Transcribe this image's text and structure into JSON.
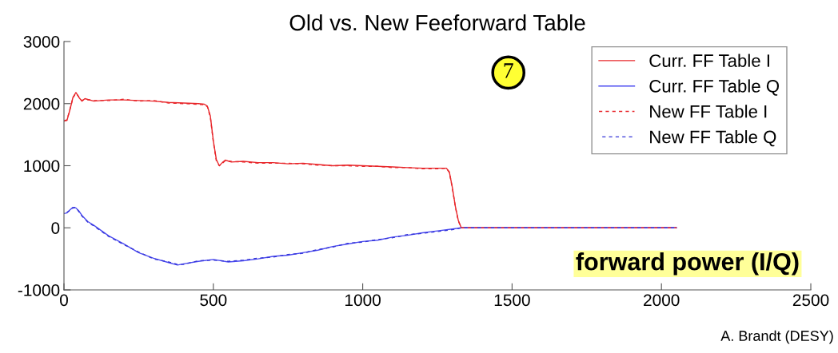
{
  "chart_data": {
    "type": "line",
    "title": "Old vs. New Feeforward Table",
    "xlim": [
      0,
      2500
    ],
    "xticks": [
      0,
      500,
      1000,
      1500,
      2000,
      2500
    ],
    "ylim": [
      -1000,
      3000
    ],
    "yticks": [
      -1000,
      0,
      1000,
      2000,
      3000
    ],
    "grid": false,
    "legend": "top right",
    "annotations": [
      "7",
      "forward power (I/Q)",
      "A. Brandt (DESY)"
    ],
    "series": [
      {
        "name": "Curr. FF Table I",
        "color": "#e8262a",
        "line_style": "solid",
        "x": [
          0,
          10,
          20,
          30,
          40,
          50,
          60,
          70,
          100,
          150,
          200,
          250,
          300,
          350,
          400,
          450,
          470,
          480,
          490,
          500,
          510,
          520,
          530,
          540,
          560,
          600,
          650,
          700,
          750,
          800,
          850,
          900,
          950,
          1000,
          1050,
          1100,
          1150,
          1200,
          1250,
          1280,
          1290,
          1300,
          1310,
          1320,
          1330,
          2050
        ],
        "values": [
          1720,
          1730,
          1900,
          2100,
          2180,
          2100,
          2040,
          2080,
          2040,
          2060,
          2060,
          2050,
          2040,
          2020,
          2010,
          2000,
          1990,
          1960,
          1800,
          1400,
          1100,
          1000,
          1050,
          1090,
          1060,
          1070,
          1050,
          1050,
          1030,
          1040,
          1020,
          1000,
          1010,
          1000,
          990,
          980,
          970,
          960,
          960,
          960,
          900,
          650,
          350,
          120,
          0,
          0
        ]
      },
      {
        "name": "Curr. FF Table Q",
        "color": "#4a4af0",
        "line_style": "solid",
        "x": [
          0,
          10,
          20,
          30,
          40,
          50,
          60,
          80,
          100,
          150,
          200,
          250,
          300,
          350,
          380,
          400,
          450,
          500,
          550,
          600,
          650,
          700,
          750,
          800,
          850,
          900,
          950,
          1000,
          1050,
          1100,
          1150,
          1200,
          1250,
          1300,
          1330,
          2050
        ],
        "values": [
          230,
          240,
          290,
          330,
          320,
          270,
          200,
          100,
          40,
          -130,
          -260,
          -400,
          -490,
          -560,
          -600,
          -580,
          -540,
          -510,
          -550,
          -530,
          -500,
          -460,
          -440,
          -400,
          -360,
          -300,
          -260,
          -220,
          -200,
          -150,
          -120,
          -80,
          -50,
          -20,
          0,
          0
        ]
      },
      {
        "name": "New FF Table I",
        "color": "#e8262a",
        "line_style": "dashed",
        "x": [
          0,
          10,
          20,
          30,
          40,
          50,
          60,
          70,
          100,
          150,
          200,
          250,
          300,
          350,
          400,
          450,
          470,
          480,
          490,
          500,
          510,
          520,
          530,
          540,
          560,
          600,
          650,
          700,
          750,
          800,
          850,
          900,
          950,
          1000,
          1050,
          1100,
          1150,
          1200,
          1250,
          1280,
          1290,
          1300,
          1310,
          1320,
          1330,
          2050
        ],
        "values": [
          1720,
          1740,
          1910,
          2090,
          2170,
          2110,
          2050,
          2070,
          2050,
          2050,
          2070,
          2040,
          2050,
          2010,
          2000,
          1990,
          1980,
          1950,
          1780,
          1380,
          1080,
          1000,
          1040,
          1080,
          1070,
          1060,
          1040,
          1040,
          1040,
          1030,
          1010,
          1000,
          1000,
          990,
          990,
          970,
          970,
          950,
          950,
          960,
          890,
          640,
          340,
          110,
          0,
          0
        ]
      },
      {
        "name": "New FF Table Q",
        "color": "#3434d8",
        "line_style": "dashed",
        "x": [
          0,
          10,
          20,
          30,
          40,
          50,
          60,
          80,
          100,
          150,
          200,
          250,
          300,
          350,
          380,
          400,
          450,
          500,
          550,
          600,
          650,
          700,
          750,
          800,
          850,
          900,
          950,
          1000,
          1050,
          1100,
          1150,
          1200,
          1250,
          1300,
          1330,
          2050
        ],
        "values": [
          220,
          250,
          280,
          320,
          330,
          260,
          190,
          90,
          30,
          -140,
          -270,
          -390,
          -500,
          -550,
          -590,
          -590,
          -530,
          -520,
          -540,
          -520,
          -490,
          -470,
          -430,
          -410,
          -350,
          -310,
          -250,
          -230,
          -190,
          -160,
          -110,
          -90,
          -60,
          -30,
          0,
          0
        ]
      }
    ]
  }
}
